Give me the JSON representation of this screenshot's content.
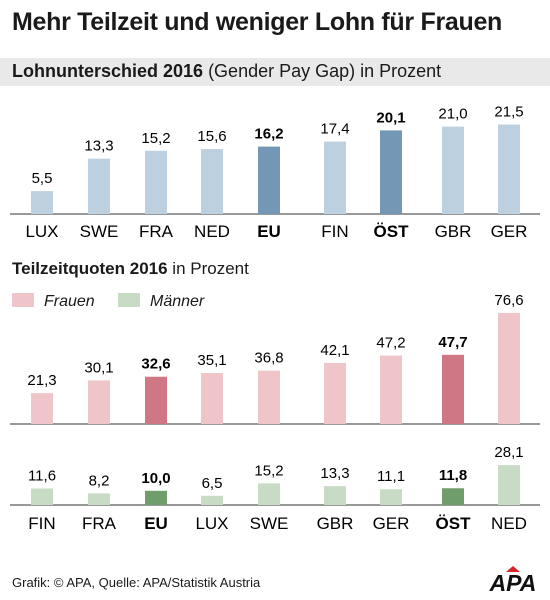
{
  "title": "Mehr Teilzeit und weniger Lohn für Frauen",
  "colors": {
    "gap_bar": "#bdd0df",
    "gap_highlight": "#7397b4",
    "frauen_bar": "#f0c5ca",
    "frauen_highlight": "#d07785",
    "maenner_bar": "#c8dcc5",
    "maenner_highlight": "#6f9d6b",
    "band": "#e9e9e9",
    "apa_red": "#d8232a"
  },
  "chart_data": [
    {
      "type": "bar",
      "title_bold": "Lohnunterschied 2016",
      "title_rest": " (Gender Pay Gap) in Prozent",
      "categories": [
        "LUX",
        "SWE",
        "FRA",
        "NED",
        "EU",
        "FIN",
        "ÖST",
        "GBR",
        "GER"
      ],
      "values": [
        5.5,
        13.3,
        15.2,
        15.6,
        16.2,
        17.4,
        20.1,
        21.0,
        21.5
      ],
      "labels": [
        "5,5",
        "13,3",
        "15,2",
        "15,6",
        "16,2",
        "17,4",
        "20,1",
        "21,0",
        "21,5"
      ],
      "highlight": [
        "EU",
        "ÖST"
      ]
    },
    {
      "type": "bar",
      "title_bold": "Teilzeitquoten 2016",
      "title_rest": " in Prozent",
      "categories": [
        "FIN",
        "FRA",
        "EU",
        "LUX",
        "SWE",
        "GBR",
        "GER",
        "ÖST",
        "NED"
      ],
      "highlight": [
        "EU",
        "ÖST"
      ],
      "series": [
        {
          "name": "Frauen",
          "values": [
            21.3,
            30.1,
            32.6,
            35.1,
            36.8,
            42.1,
            47.2,
            47.7,
            76.6
          ],
          "labels": [
            "21,3",
            "30,1",
            "32,6",
            "35,1",
            "36,8",
            "42,1",
            "47,2",
            "47,7",
            "76,6"
          ]
        },
        {
          "name": "Männer",
          "values": [
            11.6,
            8.2,
            10.0,
            6.5,
            15.2,
            13.3,
            11.1,
            11.8,
            28.1
          ],
          "labels": [
            "11,6",
            "8,2",
            "10,0",
            "6,5",
            "15,2",
            "13,3",
            "11,1",
            "11,8",
            "28,1"
          ]
        }
      ]
    }
  ],
  "footer": "Grafik: © APA, Quelle: APA/Statistik Austria",
  "logo_text": "APA"
}
